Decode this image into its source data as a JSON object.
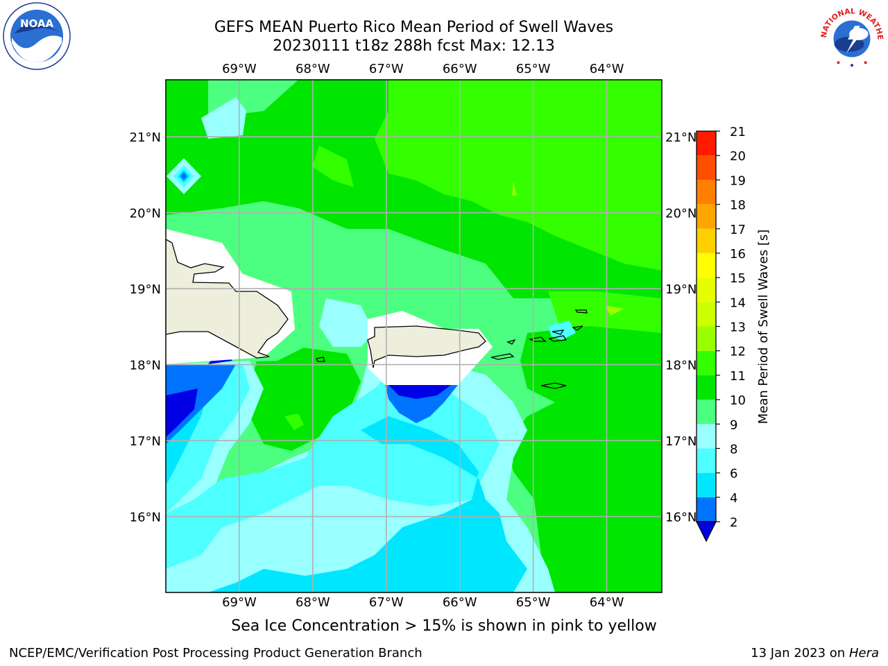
{
  "title": {
    "line1": "GEFS MEAN Puerto Rico Mean Period of Swell Waves",
    "line2": "20230111 t18z 288h fcst   Max: 12.13"
  },
  "axes": {
    "lon_labels": [
      "69°W",
      "68°W",
      "67°W",
      "66°W",
      "65°W",
      "64°W"
    ],
    "lat_labels": [
      "21°N",
      "20°N",
      "19°N",
      "18°N",
      "17°N",
      "16°N"
    ],
    "lon_range": [
      -70.0,
      -63.25
    ],
    "lat_range": [
      15.0,
      21.75
    ],
    "gridlines": true
  },
  "colorbar": {
    "label": "Mean Period of Swell Waves [s]",
    "ticks": [
      "21",
      "20",
      "19",
      "18",
      "17",
      "16",
      "15",
      "14",
      "13",
      "12",
      "11",
      "10",
      "9",
      "8",
      "6",
      "4",
      "2"
    ],
    "colors": [
      "#0000e6",
      "#0073ff",
      "#00e6ff",
      "#4dffff",
      "#99ffff",
      "#4dff80",
      "#00e600",
      "#33ff00",
      "#99ff00",
      "#ccff00",
      "#e6ff00",
      "#ffff00",
      "#ffd000",
      "#ffa500",
      "#ff8000",
      "#ff4d00",
      "#ff1a00",
      "#ff0000"
    ],
    "extend": "min"
  },
  "note": "Sea Ice Concentration > 15% is shown in pink to yellow",
  "footer": {
    "left": "NCEP/EMC/Verification Post Processing Product Generation Branch",
    "right_date": "13 Jan 2023 on ",
    "right_host": "Hera"
  },
  "logos": {
    "noaa_text": "NOAA",
    "nws_text": "NATIONAL WEATHER SERVICE"
  },
  "colors": {
    "land": "#eeeedd",
    "grid": "#b0b0b0"
  }
}
